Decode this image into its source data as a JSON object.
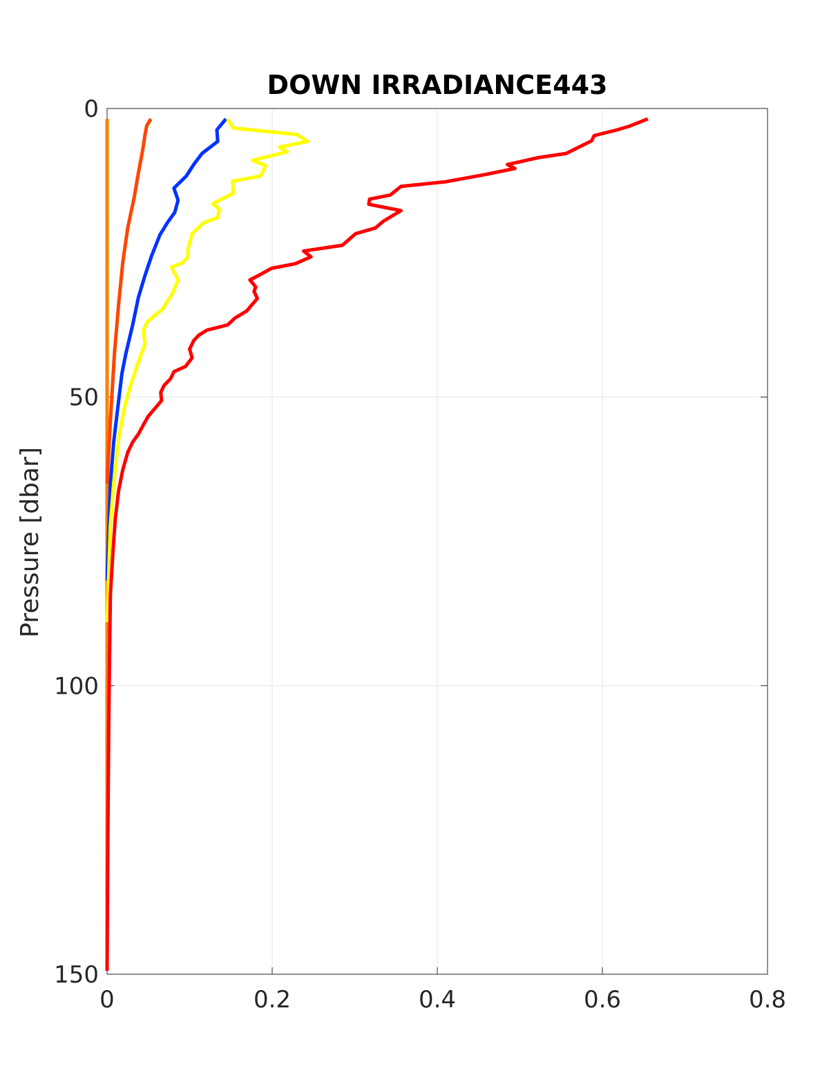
{
  "chart_data": {
    "type": "line",
    "title": "DOWN IRRADIANCE443",
    "ylabel": "Pressure [dbar]",
    "xlim": [
      0,
      0.8
    ],
    "xticks": [
      0,
      0.2,
      0.4,
      0.6,
      0.8
    ],
    "ylim": [
      0,
      150
    ],
    "yticks": [
      0,
      50,
      100,
      150
    ],
    "y_reversed": true,
    "grid": true,
    "series": [
      {
        "color": "#ff8000",
        "values": [
          0,
          0
        ],
        "pressure": [
          1.8,
          149.4
        ]
      },
      {
        "color": "#ff4500",
        "values": [
          0.053,
          0.048,
          0.046,
          0.043,
          0.038,
          0.033,
          0.025,
          0.019,
          0.014,
          0.009,
          0.006,
          0.003,
          0
        ],
        "pressure": [
          1.8,
          3.0,
          4.5,
          7.3,
          11.1,
          15.3,
          20.7,
          26.7,
          33.9,
          42.3,
          49.4,
          56.6,
          65.0
        ]
      },
      {
        "color": "#0033ff",
        "values": [
          0.144,
          0.133,
          0.134,
          0.115,
          0.105,
          0.096,
          0.081,
          0.086,
          0.082,
          0.073,
          0.064,
          0.054,
          0.046,
          0.038,
          0.031,
          0.023,
          0.018,
          0.013,
          0.008,
          0.004,
          0.002,
          0
        ],
        "pressure": [
          1.8,
          3.7,
          5.7,
          7.8,
          9.7,
          11.7,
          13.8,
          15.9,
          18.0,
          19.8,
          21.9,
          25.5,
          28.9,
          32.7,
          37.5,
          42.3,
          45.9,
          51.8,
          57.8,
          65.0,
          73.4,
          81.8
        ]
      },
      {
        "color": "#ffff00",
        "values": [
          0.146,
          0.153,
          0.23,
          0.243,
          0.209,
          0.218,
          0.176,
          0.192,
          0.186,
          0.152,
          0.153,
          0.128,
          0.136,
          0.134,
          0.117,
          0.103,
          0.098,
          0.098,
          0.092,
          0.078,
          0.086,
          0.079,
          0.067,
          0.049,
          0.044,
          0.046,
          0.036,
          0.028,
          0.021,
          0.014,
          0.008,
          0.004,
          0.002,
          0
        ],
        "pressure": [
          1.8,
          3.4,
          4.5,
          5.7,
          6.7,
          7.5,
          9.0,
          9.9,
          11.7,
          12.6,
          14.7,
          16.5,
          17.5,
          18.9,
          19.8,
          21.7,
          24.3,
          25.7,
          26.7,
          27.5,
          29.7,
          32.1,
          34.8,
          36.9,
          38.4,
          40.8,
          44.7,
          48.2,
          51.8,
          57.2,
          65.0,
          72.2,
          80.6,
          89.0
        ]
      },
      {
        "color": "#ff0000",
        "values": [
          0.655,
          0.632,
          0.618,
          0.59,
          0.587,
          0.556,
          0.523,
          0.485,
          0.494,
          0.456,
          0.41,
          0.356,
          0.343,
          0.318,
          0.317,
          0.356,
          0.335,
          0.325,
          0.301,
          0.285,
          0.238,
          0.247,
          0.228,
          0.199,
          0.184,
          0.173,
          0.18,
          0.178,
          0.182,
          0.169,
          0.155,
          0.146,
          0.121,
          0.111,
          0.105,
          0.1,
          0.103,
          0.095,
          0.081,
          0.077,
          0.069,
          0.065,
          0.066,
          0.059,
          0.05,
          0.044,
          0.038,
          0.031,
          0.025,
          0.019,
          0.014,
          0.01,
          0.007,
          0.004,
          0.003,
          0.002,
          0.001,
          0
        ],
        "pressure": [
          1.8,
          3.1,
          3.7,
          4.7,
          5.6,
          7.8,
          8.5,
          9.7,
          10.4,
          11.5,
          12.7,
          13.5,
          15.0,
          15.7,
          16.6,
          17.7,
          19.5,
          20.7,
          21.7,
          23.7,
          24.7,
          25.7,
          26.9,
          27.7,
          28.9,
          29.7,
          30.9,
          31.7,
          32.9,
          35.1,
          36.3,
          37.5,
          38.4,
          39.3,
          40.2,
          41.7,
          43.2,
          44.7,
          45.6,
          46.8,
          48.0,
          49.2,
          50.6,
          51.8,
          53.3,
          54.8,
          56.4,
          57.8,
          59.6,
          62.6,
          66.2,
          71.0,
          77.0,
          84.2,
          94.9,
          106.9,
          124.9,
          149.4
        ]
      }
    ]
  }
}
